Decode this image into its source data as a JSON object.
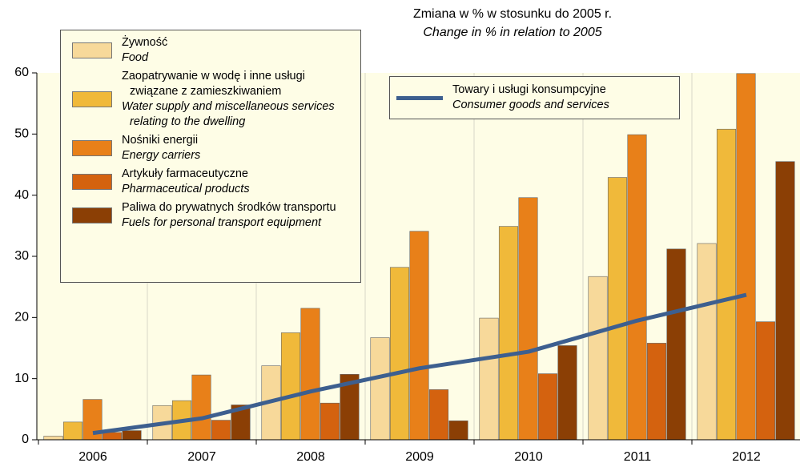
{
  "chart_data": {
    "type": "bar",
    "title": "Zmiana w % w stosunku do 2005 r.",
    "subtitle": "Change in % in relation to 2005",
    "categories": [
      "2006",
      "2007",
      "2008",
      "2009",
      "2010",
      "2011",
      "2012"
    ],
    "series": [
      {
        "name": "Żywność",
        "name_en": "Food",
        "color": "#f7d99a",
        "values": [
          0.6,
          5.6,
          12.1,
          16.7,
          19.9,
          26.7,
          32.1
        ]
      },
      {
        "name": "Zaopatrywanie w wodę i inne usługi związane z zamieszkiwaniem",
        "name_en": "Water supply and miscellaneous services relating to the dwelling",
        "color": "#f0b93a",
        "values": [
          2.9,
          6.4,
          17.5,
          28.2,
          34.9,
          42.9,
          50.8
        ]
      },
      {
        "name": "Nośniki energii",
        "name_en": "Energy carriers",
        "color": "#e88019",
        "values": [
          6.6,
          10.6,
          21.5,
          34.1,
          39.6,
          49.9,
          59.9
        ]
      },
      {
        "name": "Artykuły farmaceutyczne",
        "name_en": "Pharmaceutical products",
        "color": "#d4620f",
        "values": [
          1.2,
          3.2,
          6.0,
          8.2,
          10.8,
          15.8,
          19.3
        ]
      },
      {
        "name": "Paliwa do prywatnych środków transportu",
        "name_en": "Fuels for personal transport equipment",
        "color": "#8b3f05",
        "values": [
          1.5,
          5.7,
          10.7,
          3.1,
          15.4,
          31.2,
          45.5
        ]
      },
      {
        "name": "Towary i usługi konsumpcyjne",
        "name_en": "Consumer goods and services",
        "color": "#3d5f8f",
        "type": "line",
        "values": [
          1.1,
          3.5,
          7.9,
          11.7,
          14.4,
          19.5,
          23.7
        ]
      }
    ],
    "ylim": [
      0,
      60
    ],
    "yticks": [
      0,
      10,
      20,
      30,
      40,
      50,
      60
    ],
    "grid": false
  }
}
